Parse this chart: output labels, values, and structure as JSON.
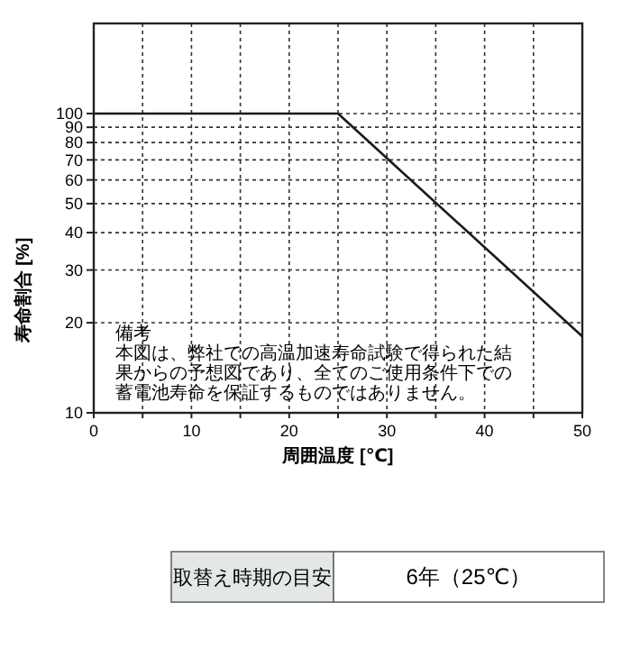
{
  "chart_data": {
    "type": "line",
    "xlabel": "周囲温度 [℃]",
    "ylabel": "寿命割合 [%]",
    "x": [
      0,
      25,
      50
    ],
    "series": [
      {
        "color": "#1a1a1a",
        "values": [
          100,
          100,
          18
        ]
      }
    ],
    "log": "y",
    "xlim": [
      0,
      50
    ],
    "ylim": [
      10,
      200
    ],
    "xticks": [
      0,
      {
        "value": 5,
        "label": null
      },
      10,
      {
        "value": 15,
        "label": null
      },
      20,
      {
        "value": 25,
        "label": null
      },
      30,
      {
        "value": 35,
        "label": null
      },
      40,
      {
        "value": 45,
        "label": null
      },
      50
    ],
    "yticks": [
      10,
      20,
      30,
      40,
      50,
      60,
      70,
      80,
      90,
      100
    ],
    "grid": true,
    "marker": "none",
    "line_style": "solid",
    "annotations": [
      "備考",
      "本図は、弊社での高温加速寿命試験で得られた結果からの予想図であり、全てのご使用条件下での蓄電池寿命を保証するものではありません。",
      "取替え時期の目安",
      "6年（25℃）"
    ]
  }
}
